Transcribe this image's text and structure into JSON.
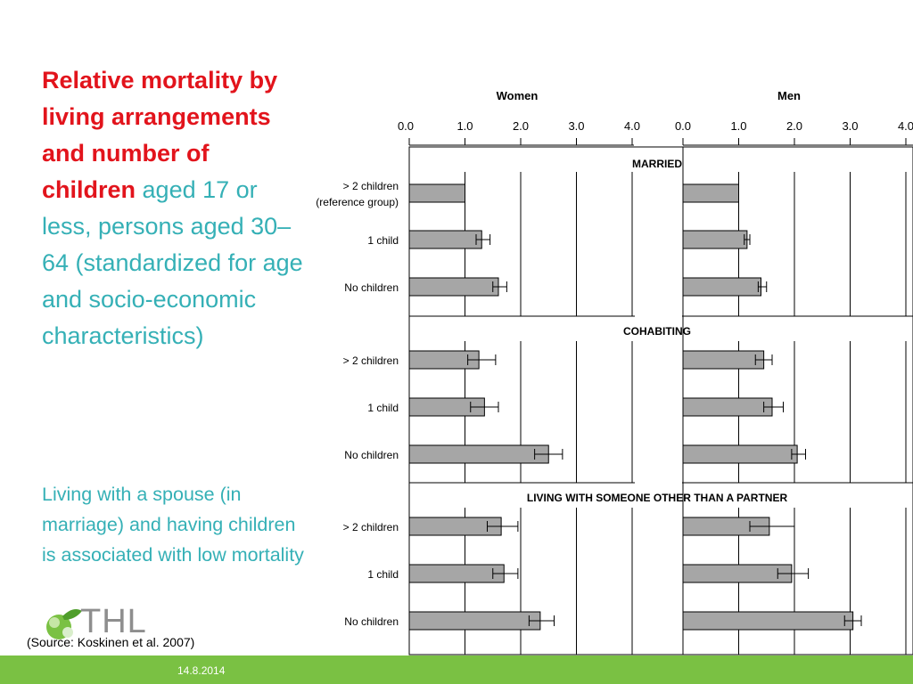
{
  "slide": {
    "title_bold": "Relative mortality by living arrangements and number of children",
    "title_rest": " aged 17 or less, persons aged 30–64 (standardized for age and socio-economic characteristics)",
    "subtitle": "Living with a spouse (in marriage) and having children is associated with low mortality",
    "source": "(Source: Koskinen et al. 2007)",
    "footer_date": "14.8.2014",
    "logo_text": "THL",
    "colors": {
      "title_red": "#e2141c",
      "text_cyan": "#35b0b6",
      "footer_green": "#7ac143",
      "bar_gray": "#a6a6a6"
    }
  },
  "chart_data": {
    "type": "bar",
    "orientation": "horizontal",
    "panels": [
      {
        "name": "Women",
        "ticks": [
          "0.0",
          "1.0",
          "2.0",
          "3.0",
          "4.0"
        ],
        "xlim": [
          0,
          4
        ]
      },
      {
        "name": "Men",
        "ticks": [
          "0.0",
          "1.0",
          "2.0",
          "3.0",
          "4.0"
        ],
        "xlim": [
          0,
          4
        ]
      }
    ],
    "groups": [
      {
        "name": "MARRIED",
        "rows": [
          {
            "label": "> 2 children",
            "label2": "(reference group)",
            "women": 1.0,
            "women_err": null,
            "men": 1.0,
            "men_err": null
          },
          {
            "label": "1  child",
            "women": 1.3,
            "women_err": [
              1.2,
              1.45
            ],
            "men": 1.15,
            "men_err": [
              1.1,
              1.2
            ]
          },
          {
            "label": "No children",
            "women": 1.6,
            "women_err": [
              1.5,
              1.75
            ],
            "men": 1.4,
            "men_err": [
              1.35,
              1.5
            ]
          }
        ]
      },
      {
        "name": "COHABITING",
        "rows": [
          {
            "label": "> 2 children",
            "women": 1.25,
            "women_err": [
              1.05,
              1.55
            ],
            "men": 1.45,
            "men_err": [
              1.3,
              1.6
            ]
          },
          {
            "label": "1  child",
            "women": 1.35,
            "women_err": [
              1.1,
              1.6
            ],
            "men": 1.6,
            "men_err": [
              1.45,
              1.8
            ]
          },
          {
            "label": "No children",
            "women": 2.5,
            "women_err": [
              2.25,
              2.75
            ],
            "men": 2.05,
            "men_err": [
              1.95,
              2.2
            ]
          }
        ]
      },
      {
        "name": "LIVING WITH SOMEONE OTHER THAN A PARTNER",
        "rows": [
          {
            "label": "> 2 children",
            "women": 1.65,
            "women_err": [
              1.4,
              1.95
            ],
            "men": 1.55,
            "men_err": [
              1.2,
              2.0
            ]
          },
          {
            "label": "1  child",
            "women": 1.7,
            "women_err": [
              1.5,
              1.95
            ],
            "men": 1.95,
            "men_err": [
              1.7,
              2.25
            ]
          },
          {
            "label": "No children",
            "women": 2.35,
            "women_err": [
              2.15,
              2.6
            ],
            "men": 3.05,
            "men_err": [
              2.9,
              3.2
            ]
          }
        ]
      }
    ]
  }
}
